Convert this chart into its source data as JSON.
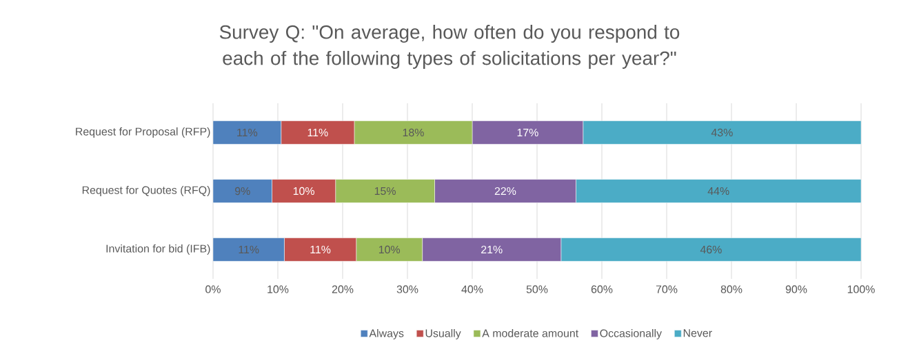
{
  "chart_data": {
    "type": "bar",
    "orientation": "horizontal",
    "stacked": true,
    "title": "Survey Q: \"On average, how often do you respond to each of the following types of solicitations per year?\"",
    "categories": [
      "Request for Proposal (RFP)",
      "Request for Quotes (RFQ)",
      "Invitation for bid (IFB)"
    ],
    "series": [
      {
        "name": "Always",
        "color": "#4f81bd",
        "values": [
          10.5,
          9.1,
          11
        ],
        "value_labels": [
          "11%",
          "9%",
          "11%"
        ]
      },
      {
        "name": "Usually",
        "color": "#c0504d",
        "values": [
          11.3,
          9.8,
          11.1
        ],
        "value_labels": [
          "11%",
          "10%",
          "11%"
        ]
      },
      {
        "name": "A moderate amount",
        "color": "#9bbb59",
        "values": [
          18.2,
          15.3,
          10.2
        ],
        "value_labels": [
          "18%",
          "15%",
          "10%"
        ]
      },
      {
        "name": "Occasionally",
        "color": "#8064a2",
        "values": [
          17.1,
          21.8,
          21.4
        ],
        "value_labels": [
          "17%",
          "22%",
          "21%"
        ]
      },
      {
        "name": "Never",
        "color": "#4bacc6",
        "values": [
          42.9,
          44,
          46.3
        ],
        "value_labels": [
          "43%",
          "44%",
          "46%"
        ]
      }
    ],
    "xlim": [
      0,
      100
    ],
    "xticks": [
      {
        "value": 0,
        "label": "0%"
      },
      {
        "value": 10,
        "label": "10%"
      },
      {
        "value": 20,
        "label": "20%"
      },
      {
        "value": 30,
        "label": "30%"
      },
      {
        "value": 40,
        "label": "40%"
      },
      {
        "value": 50,
        "label": "50%"
      },
      {
        "value": 60,
        "label": "60%"
      },
      {
        "value": 70,
        "label": "70%"
      },
      {
        "value": 80,
        "label": "80%"
      },
      {
        "value": 90,
        "label": "90%"
      },
      {
        "value": 100,
        "label": "100%"
      }
    ],
    "grid": "x",
    "legend": "bottom"
  }
}
